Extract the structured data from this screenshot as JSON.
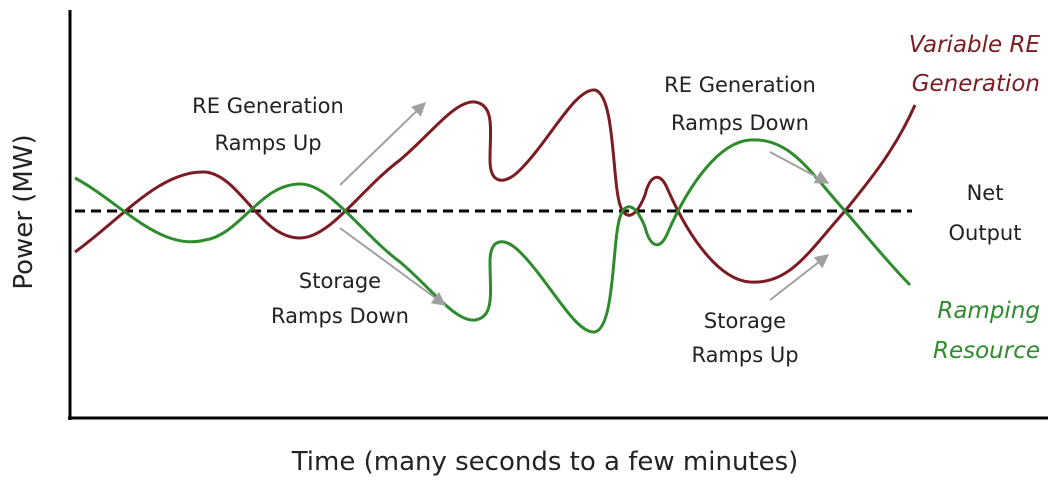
{
  "axes": {
    "y_label": "Power (MW)",
    "x_label": "Time (many seconds to a few minutes)"
  },
  "annotations": {
    "re_up": [
      "RE Generation",
      "Ramps Up"
    ],
    "storage_down": [
      "Storage",
      "Ramps Down"
    ],
    "re_down": [
      "RE Generation",
      "Ramps Down"
    ],
    "storage_up": [
      "Storage",
      "Ramps Up"
    ],
    "net_output": [
      "Net",
      "Output"
    ],
    "variable_re": [
      "Variable RE",
      "Generation"
    ],
    "ramping_resource": [
      "Ramping",
      "Resource"
    ]
  }
}
